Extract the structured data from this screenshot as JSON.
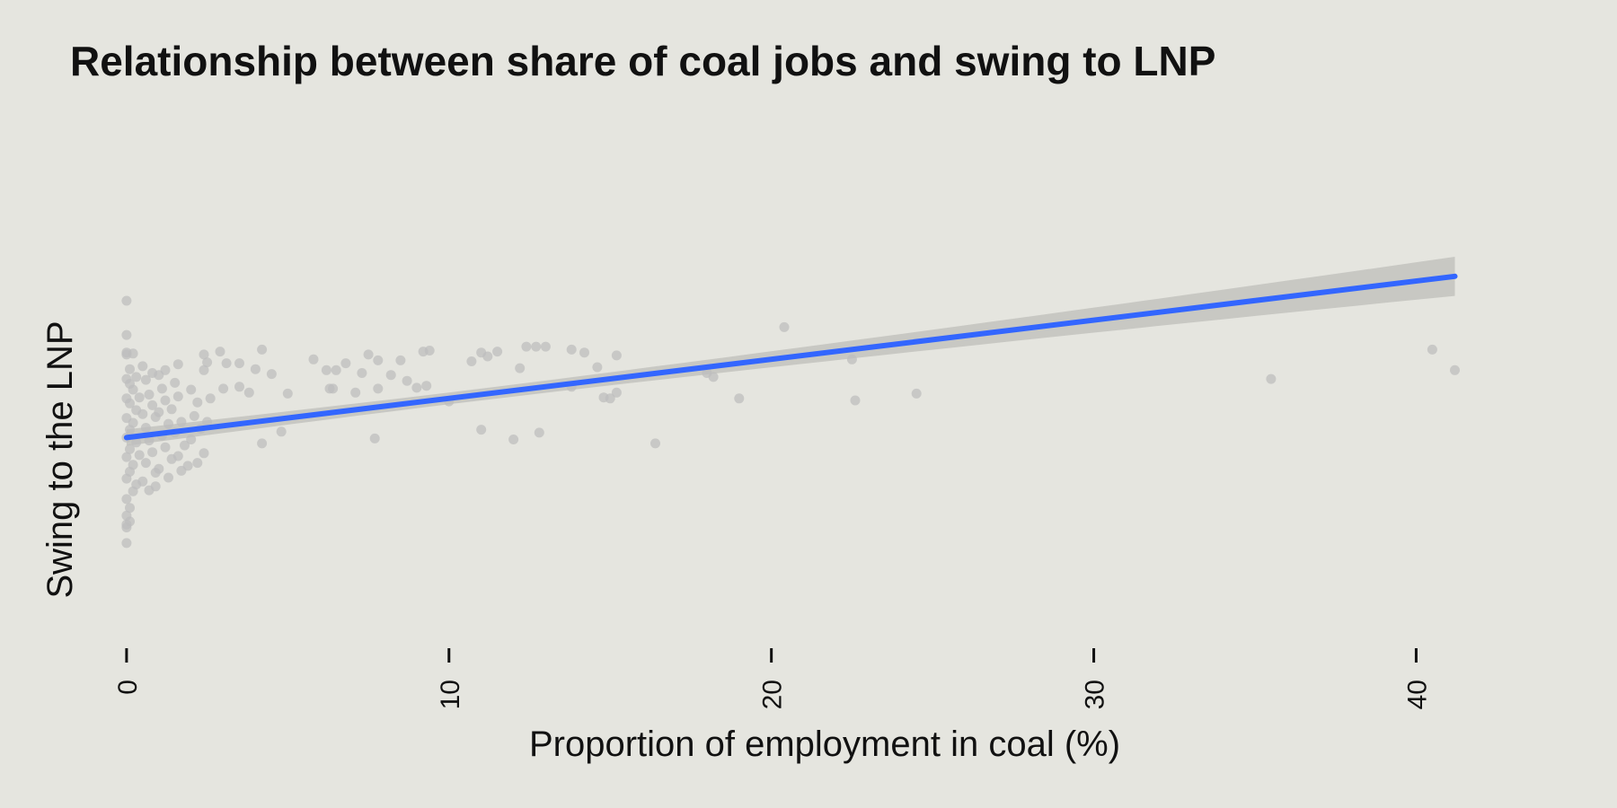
{
  "chart_data": {
    "type": "scatter",
    "title": "Relationship between share of coal jobs and swing to LNP",
    "xlabel": "Proportion of employment in coal (%)",
    "ylabel": "Swing to the LNP",
    "xlim": [
      -1,
      44
    ],
    "ylim": [
      -20,
      31
    ],
    "x_ticks": [
      0,
      10,
      20,
      30,
      40
    ],
    "y_ticks_shown": false,
    "grid": false,
    "colors": {
      "points": "#bdbdbd",
      "fit_line": "#3366ff",
      "band": "#c4c4c0",
      "background": "#e5e5df"
    },
    "trend": {
      "x": [
        0,
        41.2
      ],
      "y": [
        0,
        16.5
      ],
      "band_halfwidth": [
        0.6,
        2.0
      ]
    },
    "points": [
      [
        0.0,
        10.5
      ],
      [
        0.0,
        8.7
      ],
      [
        0.0,
        8.5
      ],
      [
        0.1,
        7.0
      ],
      [
        0.2,
        8.6
      ],
      [
        0.0,
        6.0
      ],
      [
        0.1,
        5.5
      ],
      [
        0.3,
        6.2
      ],
      [
        0.2,
        4.9
      ],
      [
        0.0,
        4.0
      ],
      [
        0.1,
        3.5
      ],
      [
        0.4,
        4.1
      ],
      [
        0.3,
        2.8
      ],
      [
        0.0,
        2.0
      ],
      [
        0.2,
        1.5
      ],
      [
        0.5,
        2.4
      ],
      [
        0.1,
        0.8
      ],
      [
        0.0,
        0.0
      ],
      [
        0.3,
        -0.5
      ],
      [
        0.1,
        -1.2
      ],
      [
        0.0,
        -2.0
      ],
      [
        0.2,
        -2.8
      ],
      [
        0.4,
        -1.8
      ],
      [
        0.1,
        -3.5
      ],
      [
        0.0,
        -4.2
      ],
      [
        0.3,
        -4.8
      ],
      [
        0.2,
        -5.5
      ],
      [
        0.0,
        -6.3
      ],
      [
        0.1,
        -7.2
      ],
      [
        0.0,
        -8.0
      ],
      [
        0.1,
        -8.6
      ],
      [
        0.0,
        -9.2
      ],
      [
        0.0,
        -8.9
      ],
      [
        0.5,
        7.3
      ],
      [
        0.6,
        5.9
      ],
      [
        0.7,
        4.4
      ],
      [
        0.8,
        3.3
      ],
      [
        0.9,
        2.1
      ],
      [
        0.6,
        1.0
      ],
      [
        0.7,
        -0.3
      ],
      [
        0.8,
        -1.5
      ],
      [
        0.6,
        -2.6
      ],
      [
        0.9,
        -3.6
      ],
      [
        0.5,
        -4.5
      ],
      [
        0.7,
        -5.4
      ],
      [
        1.0,
        6.4
      ],
      [
        1.1,
        5.0
      ],
      [
        1.2,
        3.8
      ],
      [
        1.0,
        2.6
      ],
      [
        1.3,
        1.4
      ],
      [
        1.1,
        0.2
      ],
      [
        1.2,
        -1.0
      ],
      [
        1.4,
        -2.2
      ],
      [
        1.0,
        -3.2
      ],
      [
        1.3,
        -4.1
      ],
      [
        0.9,
        -5.0
      ],
      [
        1.5,
        5.6
      ],
      [
        1.6,
        4.2
      ],
      [
        1.4,
        2.9
      ],
      [
        1.7,
        1.6
      ],
      [
        1.5,
        0.5
      ],
      [
        1.8,
        -0.8
      ],
      [
        1.6,
        -1.9
      ],
      [
        1.9,
        -2.9
      ],
      [
        1.7,
        -3.4
      ],
      [
        2.0,
        4.9
      ],
      [
        2.2,
        3.6
      ],
      [
        2.1,
        2.2
      ],
      [
        2.3,
        0.9
      ],
      [
        2.0,
        -0.2
      ],
      [
        2.4,
        -1.6
      ],
      [
        2.2,
        -2.6
      ],
      [
        2.5,
        1.6
      ],
      [
        1.2,
        6.9
      ],
      [
        0.8,
        6.6
      ],
      [
        1.6,
        7.5
      ],
      [
        2.5,
        7.7
      ],
      [
        2.4,
        6.9
      ],
      [
        3.0,
        5.0
      ],
      [
        2.6,
        4.0
      ],
      [
        3.5,
        5.2
      ],
      [
        4.0,
        7.0
      ],
      [
        4.5,
        6.5
      ],
      [
        3.8,
        4.6
      ],
      [
        2.4,
        8.5
      ],
      [
        2.9,
        8.8
      ],
      [
        3.1,
        7.6
      ],
      [
        3.5,
        7.6
      ],
      [
        4.2,
        9.0
      ],
      [
        5.8,
        8.0
      ],
      [
        6.2,
        6.9
      ],
      [
        6.4,
        5.0
      ],
      [
        6.5,
        6.9
      ],
      [
        6.8,
        7.6
      ],
      [
        7.3,
        6.6
      ],
      [
        7.5,
        8.5
      ],
      [
        7.8,
        7.9
      ],
      [
        8.2,
        6.4
      ],
      [
        8.5,
        7.9
      ],
      [
        9.2,
        8.8
      ],
      [
        9.4,
        8.9
      ],
      [
        10.7,
        7.8
      ],
      [
        11.0,
        8.7
      ],
      [
        11.2,
        8.3
      ],
      [
        11.5,
        8.8
      ],
      [
        12.2,
        7.1
      ],
      [
        12.4,
        9.3
      ],
      [
        12.7,
        9.3
      ],
      [
        13.0,
        9.3
      ],
      [
        13.8,
        9.0
      ],
      [
        14.2,
        8.7
      ],
      [
        14.6,
        7.2
      ],
      [
        15.2,
        8.4
      ],
      [
        0.0,
        14.0
      ],
      [
        4.8,
        0.6
      ],
      [
        5.0,
        4.5
      ],
      [
        6.3,
        5.0
      ],
      [
        7.1,
        4.6
      ],
      [
        7.8,
        5.0
      ],
      [
        8.7,
        5.8
      ],
      [
        9.0,
        5.1
      ],
      [
        9.3,
        5.3
      ],
      [
        10.0,
        3.7
      ],
      [
        11.0,
        0.8
      ],
      [
        12.8,
        0.5
      ],
      [
        13.8,
        5.2
      ],
      [
        14.8,
        4.1
      ],
      [
        15.0,
        4.0
      ],
      [
        15.2,
        4.6
      ],
      [
        18.0,
        6.6
      ],
      [
        18.2,
        6.2
      ],
      [
        19.0,
        4.0
      ],
      [
        20.4,
        11.3
      ],
      [
        22.5,
        8.0
      ],
      [
        22.6,
        3.8
      ],
      [
        24.5,
        4.5
      ],
      [
        35.5,
        6.0
      ],
      [
        40.5,
        9.0
      ],
      [
        41.2,
        6.9
      ],
      [
        4.2,
        -0.6
      ],
      [
        7.7,
        -0.1
      ],
      [
        12.0,
        -0.2
      ],
      [
        16.4,
        -0.6
      ],
      [
        0.0,
        -10.8
      ]
    ]
  }
}
